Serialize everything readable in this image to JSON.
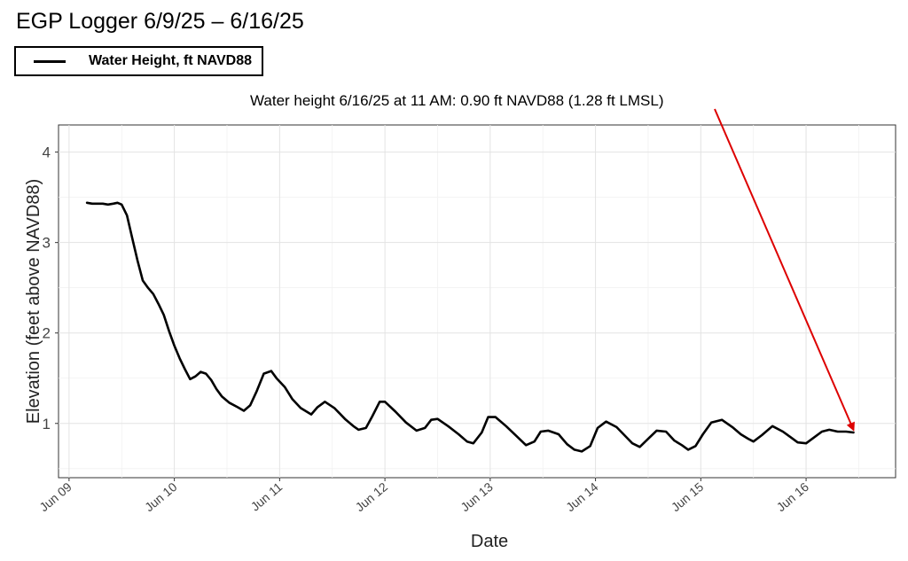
{
  "chart_data": {
    "type": "line",
    "title": "EGP Logger 6/9/25 – 6/16/25",
    "xlabel": "Date",
    "ylabel": "Elevation (feet above NAVD88)",
    "x_ticks": [
      "Jun 09",
      "Jun 10",
      "Jun 11",
      "Jun 12",
      "Jun 13",
      "Jun 14",
      "Jun 15",
      "Jun 16"
    ],
    "y_ticks": [
      1,
      2,
      3,
      4
    ],
    "xlim": [
      8.9,
      16.85
    ],
    "ylim": [
      0.4,
      4.3
    ],
    "grid": true,
    "legend_position": "top-left",
    "annotation": {
      "text": "Water height 6/16/25 at 11 AM: 0.90 ft NAVD88 (1.28 ft LMSL)",
      "color": "#dd0000",
      "target": [
        16.45,
        0.93
      ]
    },
    "series": [
      {
        "name": "Water Height, ft NAVD88",
        "color": "#000000",
        "x": [
          9.17,
          9.22,
          9.27,
          9.32,
          9.37,
          9.42,
          9.46,
          9.5,
          9.55,
          9.6,
          9.65,
          9.7,
          9.75,
          9.8,
          9.85,
          9.9,
          9.95,
          10.0,
          10.05,
          10.1,
          10.15,
          10.2,
          10.25,
          10.3,
          10.35,
          10.4,
          10.45,
          10.52,
          10.6,
          10.66,
          10.72,
          10.78,
          10.85,
          10.92,
          10.97,
          11.05,
          11.12,
          11.2,
          11.3,
          11.36,
          11.43,
          11.52,
          11.62,
          11.7,
          11.75,
          11.82,
          11.88,
          11.95,
          12.0,
          12.1,
          12.2,
          12.3,
          12.38,
          12.44,
          12.5,
          12.6,
          12.7,
          12.78,
          12.84,
          12.92,
          12.98,
          13.05,
          13.15,
          13.25,
          13.34,
          13.42,
          13.48,
          13.55,
          13.65,
          13.73,
          13.8,
          13.87,
          13.95,
          14.02,
          14.1,
          14.2,
          14.3,
          14.35,
          14.42,
          14.5,
          14.58,
          14.67,
          14.75,
          14.82,
          14.88,
          14.95,
          15.02,
          15.1,
          15.2,
          15.3,
          15.38,
          15.45,
          15.5,
          15.58,
          15.68,
          15.78,
          15.85,
          15.92,
          16.0,
          16.07,
          16.15,
          16.22,
          16.3,
          16.38,
          16.45
        ],
        "y": [
          3.44,
          3.43,
          3.43,
          3.43,
          3.42,
          3.43,
          3.44,
          3.42,
          3.3,
          3.05,
          2.8,
          2.58,
          2.5,
          2.43,
          2.32,
          2.2,
          2.02,
          1.86,
          1.72,
          1.6,
          1.49,
          1.52,
          1.57,
          1.55,
          1.48,
          1.38,
          1.3,
          1.23,
          1.18,
          1.14,
          1.2,
          1.35,
          1.55,
          1.58,
          1.5,
          1.4,
          1.27,
          1.17,
          1.1,
          1.18,
          1.24,
          1.17,
          1.05,
          0.97,
          0.93,
          0.95,
          1.08,
          1.24,
          1.24,
          1.13,
          1.01,
          0.92,
          0.95,
          1.04,
          1.05,
          0.97,
          0.88,
          0.8,
          0.78,
          0.9,
          1.07,
          1.07,
          0.97,
          0.86,
          0.76,
          0.8,
          0.91,
          0.92,
          0.88,
          0.77,
          0.71,
          0.69,
          0.75,
          0.95,
          1.02,
          0.96,
          0.84,
          0.78,
          0.74,
          0.83,
          0.92,
          0.91,
          0.81,
          0.76,
          0.71,
          0.75,
          0.88,
          1.01,
          1.04,
          0.96,
          0.88,
          0.83,
          0.8,
          0.87,
          0.97,
          0.91,
          0.85,
          0.79,
          0.78,
          0.84,
          0.91,
          0.93,
          0.91,
          0.91,
          0.9
        ]
      }
    ]
  }
}
